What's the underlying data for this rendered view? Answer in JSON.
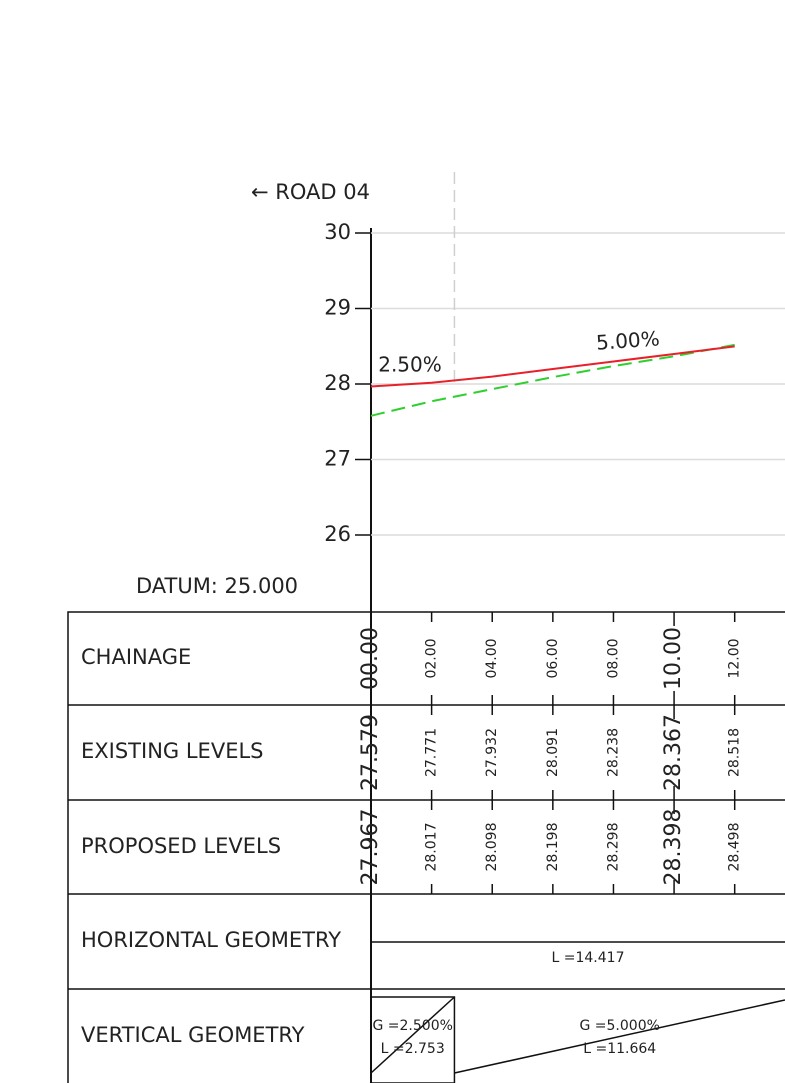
{
  "chart_data": {
    "type": "line",
    "annotations": {
      "road": "← ROAD 04",
      "grade1": "2.50%",
      "grade2": "5.00%",
      "datum": "DATUM: 25.000"
    },
    "x_label": "CHAINAGE",
    "x": [
      0,
      2,
      4,
      6,
      8,
      10,
      12
    ],
    "xlim": [
      0,
      13.66
    ],
    "xticks": [
      {
        "value": 0,
        "label": "00.00"
      },
      {
        "value": 2,
        "label": "02.00"
      },
      {
        "value": 4,
        "label": "04.00"
      },
      {
        "value": 6,
        "label": "06.00"
      },
      {
        "value": 8,
        "label": "08.00"
      },
      {
        "value": 10,
        "label": "10.00"
      },
      {
        "value": 12,
        "label": "12.00"
      }
    ],
    "ylim": [
      25,
      30
    ],
    "yticks": [
      26,
      27,
      28,
      29,
      30
    ],
    "grid": true,
    "series": [
      {
        "name": "EXISTING LEVELS",
        "color": "#2fcf2f",
        "dashed": true,
        "values": [
          27.579,
          27.771,
          27.932,
          28.091,
          28.238,
          28.367,
          28.518
        ]
      },
      {
        "name": "PROPOSED LEVELS",
        "color": "#e8202a",
        "dashed": false,
        "values": [
          27.967,
          28.017,
          28.098,
          28.198,
          28.298,
          28.398,
          28.498
        ]
      }
    ],
    "horizontal_geometry": {
      "label": "HORIZONTAL GEOMETRY",
      "length_label": "L =14.417"
    },
    "vertical_geometry": {
      "label": "VERTICAL GEOMETRY",
      "segments": [
        {
          "grade_label": "G =2.500%",
          "length": 2.753,
          "length_label": "L =2.753"
        },
        {
          "grade_label": "G =5.000%",
          "length": 11.664,
          "length_label": "L =11.664"
        }
      ]
    }
  }
}
